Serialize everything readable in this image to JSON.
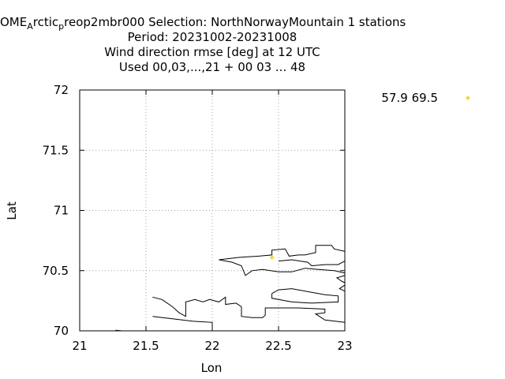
{
  "chart_data": {
    "type": "scatter",
    "title_lines": [
      "OME_Arctic_preop2mbr000   Selection: NorthNorwayMountain      1 stations",
      "Period: 20231002-20231008",
      "Wind direction rmse [deg] at  12 UTC",
      "Used  00,03,...,21  + 00 03 ... 48"
    ],
    "title_line1": {
      "part1": "OME",
      "sub1": "A",
      "part2": "rctic",
      "sub2": "p",
      "part3": "reop2mbr000   Selection: NorthNorwayMountain      1 stations"
    },
    "xlabel": "Lon",
    "ylabel": "Lat",
    "xlim": [
      21,
      23
    ],
    "ylim": [
      70,
      72
    ],
    "xticks": [
      "21",
      "21.5",
      "22",
      "22.5",
      "23"
    ],
    "yticks": [
      "70",
      "70.5",
      "71",
      "71.5",
      "72"
    ],
    "xtick_values": [
      21,
      21.5,
      22,
      22.5,
      23
    ],
    "ytick_values": [
      70,
      70.5,
      71,
      71.5,
      72
    ],
    "grid": true,
    "legend_position": "right",
    "legend_label": "57.9 69.5",
    "point_color": "#f0d840",
    "points": [
      {
        "lon": 22.45,
        "lat": 70.61
      }
    ],
    "coastline_color": "#000000",
    "coastlines": [
      [
        [
          21.27,
          70.005
        ],
        [
          21.32,
          70.0
        ],
        [
          21.32,
          70.0
        ]
      ],
      [
        [
          21.55,
          70.28
        ],
        [
          21.62,
          70.26
        ],
        [
          21.7,
          70.2
        ],
        [
          21.75,
          70.15
        ],
        [
          21.8,
          70.12
        ],
        [
          21.8,
          70.24
        ],
        [
          21.87,
          70.26
        ],
        [
          21.93,
          70.24
        ],
        [
          21.98,
          70.26
        ],
        [
          22.05,
          70.24
        ],
        [
          22.1,
          70.28
        ],
        [
          22.1,
          70.22
        ],
        [
          22.18,
          70.23
        ],
        [
          22.22,
          70.2
        ],
        [
          22.22,
          70.12
        ],
        [
          22.3,
          70.11
        ],
        [
          22.38,
          70.11
        ],
        [
          22.4,
          70.13
        ],
        [
          22.4,
          70.19
        ],
        [
          22.55,
          70.19
        ],
        [
          22.65,
          70.19
        ],
        [
          22.85,
          70.18
        ],
        [
          22.85,
          70.15
        ],
        [
          22.78,
          70.14
        ],
        [
          22.85,
          70.09
        ],
        [
          23.0,
          70.07
        ]
      ],
      [
        [
          21.55,
          70.12
        ],
        [
          21.7,
          70.1
        ],
        [
          21.85,
          70.08
        ],
        [
          22.0,
          70.07
        ],
        [
          22.0,
          70.0
        ]
      ],
      [
        [
          22.45,
          70.31
        ],
        [
          22.5,
          70.34
        ],
        [
          22.6,
          70.35
        ],
        [
          22.75,
          70.32
        ],
        [
          22.85,
          70.3
        ],
        [
          22.95,
          70.29
        ],
        [
          22.95,
          70.24
        ],
        [
          22.75,
          70.23
        ],
        [
          22.6,
          70.24
        ],
        [
          22.5,
          70.26
        ],
        [
          22.45,
          70.27
        ],
        [
          22.45,
          70.31
        ]
      ],
      [
        [
          22.05,
          70.59
        ],
        [
          22.2,
          70.61
        ],
        [
          22.35,
          70.62
        ],
        [
          22.45,
          70.63
        ],
        [
          22.45,
          70.67
        ],
        [
          22.55,
          70.68
        ],
        [
          22.57,
          70.64
        ],
        [
          22.58,
          70.62
        ],
        [
          22.65,
          70.63
        ],
        [
          22.7,
          70.63
        ],
        [
          22.78,
          70.65
        ],
        [
          22.78,
          70.71
        ],
        [
          22.9,
          70.71
        ],
        [
          22.92,
          70.68
        ],
        [
          23.0,
          70.66
        ]
      ],
      [
        [
          22.05,
          70.59
        ],
        [
          22.15,
          70.57
        ],
        [
          22.22,
          70.54
        ],
        [
          22.25,
          70.46
        ],
        [
          22.3,
          70.5
        ],
        [
          22.38,
          70.51
        ],
        [
          22.5,
          70.49
        ],
        [
          22.6,
          70.49
        ],
        [
          22.7,
          70.52
        ],
        [
          22.8,
          70.51
        ],
        [
          22.92,
          70.5
        ],
        [
          23.0,
          70.48
        ]
      ],
      [
        [
          23.0,
          70.58
        ],
        [
          22.95,
          70.55
        ],
        [
          22.85,
          70.55
        ],
        [
          22.75,
          70.54
        ],
        [
          22.72,
          70.57
        ],
        [
          22.6,
          70.59
        ],
        [
          22.5,
          70.58
        ]
      ],
      [
        [
          23.0,
          70.46
        ],
        [
          22.94,
          70.44
        ],
        [
          22.98,
          70.41
        ],
        [
          23.0,
          70.4
        ]
      ],
      [
        [
          23.0,
          70.38
        ],
        [
          22.96,
          70.35
        ],
        [
          23.0,
          70.33
        ]
      ]
    ]
  }
}
